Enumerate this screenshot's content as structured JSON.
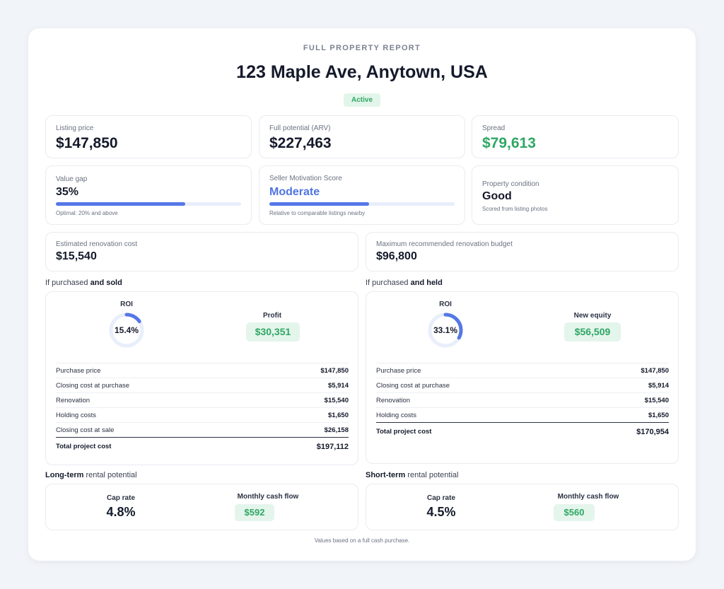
{
  "header": {
    "label": "FULL PROPERTY REPORT",
    "address": "123 Maple Ave, Anytown, USA",
    "status": "Active"
  },
  "summary": {
    "listing_price": {
      "label": "Listing price",
      "value": "$147,850"
    },
    "arv": {
      "label": "Full potential (ARV)",
      "value": "$227,463"
    },
    "spread": {
      "label": "Spread",
      "value": "$79,613"
    }
  },
  "metrics": {
    "value_gap": {
      "label": "Value gap",
      "value": "35%",
      "note": "Optimal: 20% and above",
      "fill_fraction": 0.7
    },
    "seller_motivation": {
      "label": "Seller Motivation Score",
      "value": "Moderate",
      "note": "Relative to comparable listings nearby",
      "fill_fraction": 0.54
    },
    "condition": {
      "label": "Property condition",
      "value": "Good",
      "note": "Scored from listing photos"
    }
  },
  "renovation": {
    "estimated": {
      "label": "Estimated renovation cost",
      "value": "$15,540"
    },
    "max_budget": {
      "label": "Maximum recommended renovation budget",
      "value": "$96,800"
    }
  },
  "sold": {
    "heading_prefix": "If purchased",
    "heading_bold": "and sold",
    "roi_label": "ROI",
    "roi_value": "15.4%",
    "roi_fraction": 0.154,
    "profit_label": "Profit",
    "profit_value": "$30,351",
    "rows": [
      {
        "label": "Purchase price",
        "amount": "$147,850"
      },
      {
        "label": "Closing cost at purchase",
        "amount": "$5,914"
      },
      {
        "label": "Renovation",
        "amount": "$15,540"
      },
      {
        "label": "Holding costs",
        "amount": "$1,650"
      },
      {
        "label": "Closing cost at sale",
        "amount": "$26,158"
      }
    ],
    "total": {
      "label": "Total project cost",
      "amount": "$197,112"
    }
  },
  "held": {
    "heading_prefix": "If purchased",
    "heading_bold": "and held",
    "roi_label": "ROI",
    "roi_value": "33.1%",
    "roi_fraction": 0.331,
    "equity_label": "New equity",
    "equity_value": "$56,509",
    "rows": [
      {
        "label": "Purchase price",
        "amount": "$147,850"
      },
      {
        "label": "Closing cost at purchase",
        "amount": "$5,914"
      },
      {
        "label": "Renovation",
        "amount": "$15,540"
      },
      {
        "label": "Holding costs",
        "amount": "$1,650"
      }
    ],
    "total": {
      "label": "Total project cost",
      "amount": "$170,954"
    }
  },
  "long_term": {
    "heading_bold": "Long-term",
    "heading_rest": "rental potential",
    "cap_rate_label": "Cap rate",
    "cap_rate_value": "4.8%",
    "cash_flow_label": "Monthly cash flow",
    "cash_flow_value": "$592"
  },
  "short_term": {
    "heading_bold": "Short-term",
    "heading_rest": "rental potential",
    "cap_rate_label": "Cap rate",
    "cap_rate_value": "4.5%",
    "cash_flow_label": "Monthly cash flow",
    "cash_flow_value": "$560"
  },
  "footnote": "Values based on a full cash purchase.",
  "colors": {
    "accent_green": "#2fa764",
    "accent_blue": "#4f74e0",
    "donut_track": "#e9eefb",
    "donut_fill": "#5577e6"
  }
}
